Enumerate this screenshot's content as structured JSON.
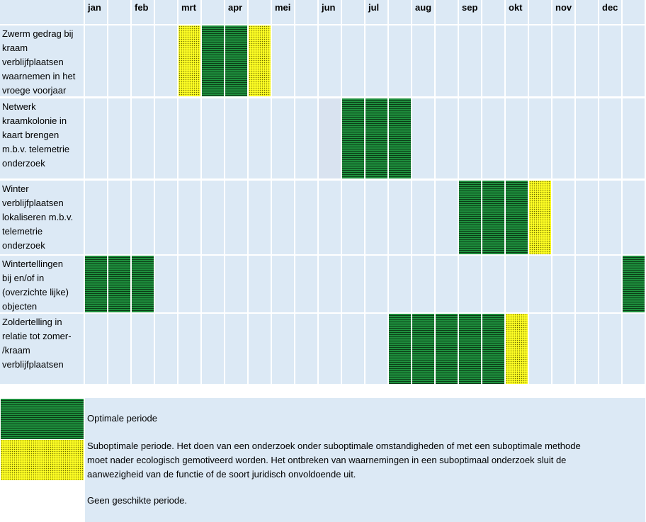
{
  "months": [
    "jan",
    "feb",
    "mrt",
    "apr",
    "mei",
    "jun",
    "jul",
    "aug",
    "sep",
    "okt",
    "nov",
    "dec"
  ],
  "activities": [
    {
      "label": "Zwerm gedrag bij kraam verblijfplaatsen waarnemen in het vroege voorjaar",
      "lines": [
        "Zwerm gedrag bij",
        "kraam",
        "verblijfplaatsen",
        "waarnemen in het",
        "vroege voorjaar"
      ]
    },
    {
      "label": "Netwerk kraamkolonie in kaart brengen m.b.v. telemetrie onderzoek",
      "lines": [
        "Netwerk",
        "kraamkolonie in",
        "kaart brengen",
        "m.b.v. telemetrie",
        "onderzoek"
      ]
    },
    {
      "label": "Winter verblijfplaatsen lokaliseren m.b.v. telemetrie onderzoek",
      "lines": [
        "Winter",
        "verblijfplaatsen",
        "lokaliseren m.b.v.",
        "telemetrie",
        "onderzoek"
      ]
    },
    {
      "label": "Wintertellingen bij en/of in (overzichte lijke) objecten",
      "lines": [
        "Wintertellingen",
        "bij en/of in",
        "(overzichte lijke)",
        "objecten"
      ]
    },
    {
      "label": "Zoldertelling in relatie tot zomer-/kraam verblijfplaatsen",
      "lines": [
        "Zoldertelling in",
        "relatie tot zomer-",
        "/kraam",
        "verblijfplaatsen"
      ]
    }
  ],
  "schedule": [
    [
      "none",
      "none",
      "none",
      "none",
      "sub",
      "opt",
      "opt",
      "sub",
      "none",
      "none",
      "none",
      "none",
      "none",
      "none",
      "none",
      "none",
      "none",
      "none",
      "none",
      "none",
      "none",
      "none",
      "none",
      "none"
    ],
    [
      "none",
      "none",
      "none",
      "none",
      "none",
      "none",
      "none",
      "none",
      "none",
      "none",
      "light",
      "opt",
      "opt",
      "opt",
      "none",
      "none",
      "none",
      "none",
      "none",
      "none",
      "none",
      "none",
      "none",
      "none"
    ],
    [
      "none",
      "none",
      "none",
      "none",
      "none",
      "none",
      "none",
      "none",
      "none",
      "none",
      "none",
      "none",
      "none",
      "none",
      "none",
      "none",
      "opt",
      "opt",
      "opt",
      "sub",
      "none",
      "none",
      "none",
      "none"
    ],
    [
      "opt",
      "opt",
      "opt",
      "none",
      "none",
      "none",
      "none",
      "none",
      "none",
      "none",
      "none",
      "none",
      "none",
      "none",
      "none",
      "none",
      "none",
      "none",
      "none",
      "none",
      "none",
      "none",
      "none",
      "opt"
    ],
    [
      "none",
      "none",
      "none",
      "none",
      "none",
      "none",
      "none",
      "none",
      "none",
      "none",
      "none",
      "none",
      "none",
      "opt",
      "opt",
      "opt",
      "opt",
      "opt",
      "sub",
      "none",
      "none",
      "none",
      "none",
      "none"
    ]
  ],
  "legend": {
    "optimal": "Optimale periode",
    "suboptimal_lines": [
      "Suboptimale periode. Het doen van een onderzoek onder suboptimale omstandigheden of met een suboptimale methode",
      "moet nader ecologisch gemotiveerd worden. Het ontbreken van waarnemingen in een suboptimaal onderzoek sluit de",
      "aanwezigheid van de functie of de soort juridisch onvoldoende uit."
    ],
    "unsuitable": "Geen geschikte periode."
  },
  "colors": {
    "cell": "#dce9f5",
    "optimal": "#1e8f3d",
    "suboptimal": "#ffff24",
    "grid_line": "#ffffff"
  }
}
